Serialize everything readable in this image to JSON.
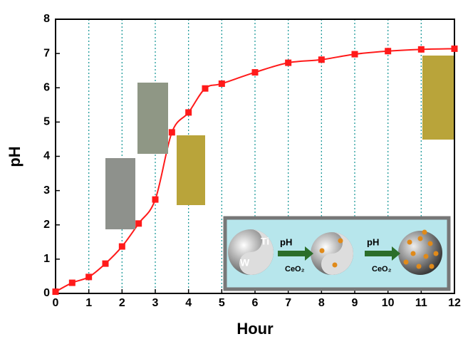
{
  "chart_data": {
    "type": "line",
    "x_label": "Hour",
    "y_label": "pH",
    "x": [
      0,
      0.5,
      1,
      1.5,
      2,
      2.5,
      3,
      3.5,
      4,
      4.5,
      5,
      6,
      7,
      8,
      9,
      10,
      11,
      12
    ],
    "values": [
      0.05,
      0.31,
      0.48,
      0.87,
      1.37,
      2.04,
      2.74,
      4.7,
      5.28,
      5.98,
      6.12,
      6.45,
      6.73,
      6.82,
      6.98,
      7.07,
      7.12,
      7.14
    ],
    "color": "#ff1a1a",
    "xlim": [
      0,
      12
    ],
    "ylim": [
      0,
      8
    ],
    "xticks": [
      0,
      1,
      2,
      3,
      4,
      5,
      6,
      7,
      8,
      9,
      10,
      11,
      12
    ],
    "yticks": [
      0,
      1,
      2,
      3,
      4,
      5,
      6,
      7,
      8
    ],
    "grid": "x",
    "grid_color": "#1e9a9a",
    "inset_labels": [
      "Ti",
      "W",
      "pH",
      "CeO₂",
      "pH",
      "CeO₂"
    ]
  }
}
